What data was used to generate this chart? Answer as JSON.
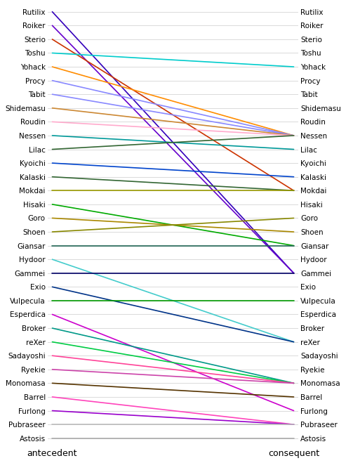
{
  "characters": [
    "Rutilix",
    "Roiker",
    "Sterio",
    "Toshu",
    "Yohack",
    "Procy",
    "Tabit",
    "Shidemasu",
    "Roudin",
    "Nessen",
    "Lilac",
    "Kyoichi",
    "Kalaski",
    "Mokdai",
    "Hisaki",
    "Goro",
    "Shoen",
    "Giansar",
    "Hydoor",
    "Gammei",
    "Exio",
    "Vulpecula",
    "Esperdica",
    "Broker",
    "reXer",
    "Sadayoshi",
    "Ryekie",
    "Monomasa",
    "Barrel",
    "Furlong",
    "Pubraseer",
    "Astosis"
  ],
  "lines": [
    {
      "ant": "Rutilix",
      "con": "Gammei",
      "color": "#3300bb"
    },
    {
      "ant": "Roiker",
      "con": "Gammei",
      "color": "#6600cc"
    },
    {
      "ant": "Sterio",
      "con": "Mokdai",
      "color": "#cc3300"
    },
    {
      "ant": "Toshu",
      "con": "Yohack",
      "color": "#00cccc"
    },
    {
      "ant": "Yohack",
      "con": "Nessen",
      "color": "#ff8c00"
    },
    {
      "ant": "Procy",
      "con": "Nessen",
      "color": "#8888ff"
    },
    {
      "ant": "Tabit",
      "con": "Nessen",
      "color": "#8888ff"
    },
    {
      "ant": "Shidemasu",
      "con": "Nessen",
      "color": "#cc8833"
    },
    {
      "ant": "Roudin",
      "con": "Nessen",
      "color": "#ffaacc"
    },
    {
      "ant": "Nessen",
      "con": "Lilac",
      "color": "#009999"
    },
    {
      "ant": "Lilac",
      "con": "Nessen",
      "color": "#336633"
    },
    {
      "ant": "Kyoichi",
      "con": "Kalaski",
      "color": "#0044cc"
    },
    {
      "ant": "Kalaski",
      "con": "Mokdai",
      "color": "#336633"
    },
    {
      "ant": "Mokdai",
      "con": "Mokdai",
      "color": "#999900"
    },
    {
      "ant": "Hisaki",
      "con": "Giansar",
      "color": "#00aa00"
    },
    {
      "ant": "Goro",
      "con": "Shoen",
      "color": "#aa8800"
    },
    {
      "ant": "Shoen",
      "con": "Goro",
      "color": "#888800"
    },
    {
      "ant": "Giansar",
      "con": "Giansar",
      "color": "#226655"
    },
    {
      "ant": "Hydoor",
      "con": "reXer",
      "color": "#44cccc"
    },
    {
      "ant": "Gammei",
      "con": "Gammei",
      "color": "#000066"
    },
    {
      "ant": "Exio",
      "con": "reXer",
      "color": "#003388"
    },
    {
      "ant": "Vulpecula",
      "con": "Vulpecula",
      "color": "#009900"
    },
    {
      "ant": "Esperdica",
      "con": "Furlong",
      "color": "#cc00cc"
    },
    {
      "ant": "Broker",
      "con": "Monomasa",
      "color": "#009988"
    },
    {
      "ant": "reXer",
      "con": "Monomasa",
      "color": "#00cc44"
    },
    {
      "ant": "Sadayoshi",
      "con": "Monomasa",
      "color": "#ff4499"
    },
    {
      "ant": "Ryekie",
      "con": "Monomasa",
      "color": "#cc44aa"
    },
    {
      "ant": "Monomasa",
      "con": "Barrel",
      "color": "#553300"
    },
    {
      "ant": "Barrel",
      "con": "Pubraseer",
      "color": "#ff44bb"
    },
    {
      "ant": "Furlong",
      "con": "Pubraseer",
      "color": "#9900cc"
    },
    {
      "ant": "Pubraseer",
      "con": "Pubraseer",
      "color": "#bbbbbb"
    },
    {
      "ant": "Astosis",
      "con": "Astosis",
      "color": "#aaaaaa"
    }
  ],
  "xlabel_left": "antecedent",
  "xlabel_right": "consequent"
}
